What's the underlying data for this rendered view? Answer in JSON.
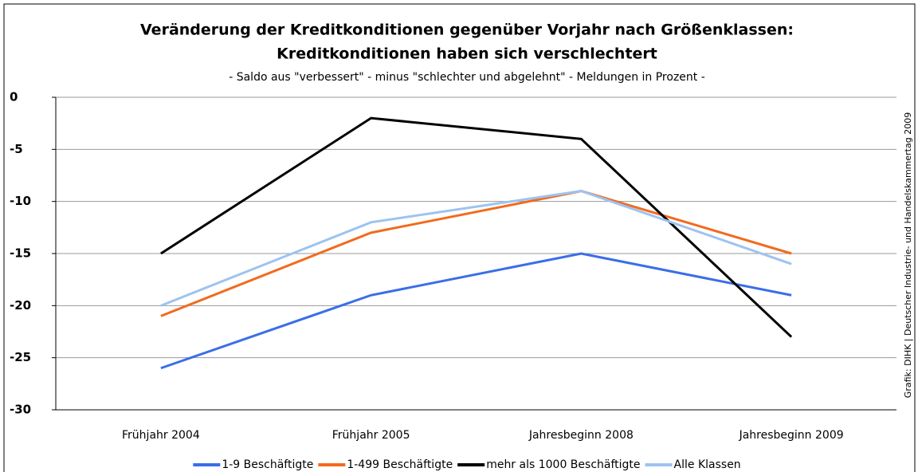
{
  "chart_data": {
    "type": "line",
    "title": "Veränderung der Kreditkonditionen gegenüber Vorjahr nach Größenklassen:",
    "title2": "Kreditkonditionen haben sich verschlechtert",
    "subtitle": "- Saldo aus \"verbessert\" - minus \"schlechter und abgelehnt\" - Meldungen in Prozent -",
    "source": "Grafik: DIHK | Deutscher Industrie- und Handelskammertag 2009",
    "categories": [
      "Frühjahr 2004",
      "Frühjahr 2005",
      "Jahresbeginn 2008",
      "Jahresbeginn 2009"
    ],
    "series": [
      {
        "name": "1-9 Beschäftigte",
        "color": "#3a6ee8",
        "values": [
          -26,
          -19,
          -15,
          -19
        ]
      },
      {
        "name": "1-499 Beschäftigte",
        "color": "#f26b1d",
        "values": [
          -21,
          -13,
          -9,
          -15
        ]
      },
      {
        "name": "mehr als 1000 Beschäftigte",
        "color": "#000000",
        "values": [
          -15,
          -2,
          -4,
          -23
        ]
      },
      {
        "name": "Alle Klassen",
        "color": "#9dc3f0",
        "values": [
          -20,
          -12,
          -9,
          -16
        ]
      }
    ],
    "ylim": [
      -30,
      0
    ],
    "yticks": [
      -30,
      -25,
      -20,
      -15,
      -10,
      -5,
      0
    ],
    "grid": true
  }
}
